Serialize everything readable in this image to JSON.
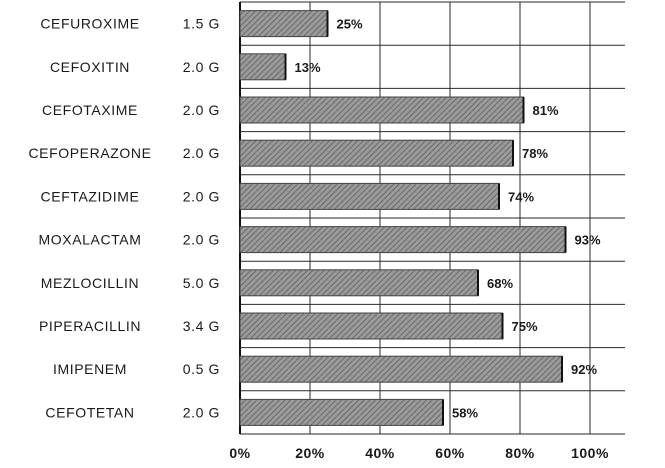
{
  "chart_data": {
    "type": "bar",
    "orientation": "horizontal",
    "categories": [
      "CEFUROXIME",
      "CEFOXITIN",
      "CEFOTAXIME",
      "CEFOPERAZONE",
      "CEFTAZIDIME",
      "MOXALACTAM",
      "MEZLOCILLIN",
      "PIPERACILLIN",
      "IMIPENEM",
      "CEFOTETAN"
    ],
    "doses": [
      "1.5 G",
      "2.0 G",
      "2.0 G",
      "2.0 G",
      "2.0 G",
      "2.0 G",
      "5.0 G",
      "3.4 G",
      "0.5 G",
      "2.0 G"
    ],
    "values": [
      25,
      13,
      81,
      78,
      74,
      93,
      68,
      75,
      92,
      58
    ],
    "value_labels": [
      "25%",
      "13%",
      "81%",
      "78%",
      "74%",
      "93%",
      "68%",
      "75%",
      "92%",
      "58%"
    ],
    "xlim": [
      0,
      110
    ],
    "xticks": [
      0,
      20,
      40,
      60,
      80,
      100
    ],
    "xtick_labels": [
      "0%",
      "20%",
      "40%",
      "60%",
      "80%",
      "100%"
    ],
    "grid": true,
    "bar_color": "#8a8a8a",
    "title": "",
    "xlabel": "",
    "ylabel": ""
  }
}
